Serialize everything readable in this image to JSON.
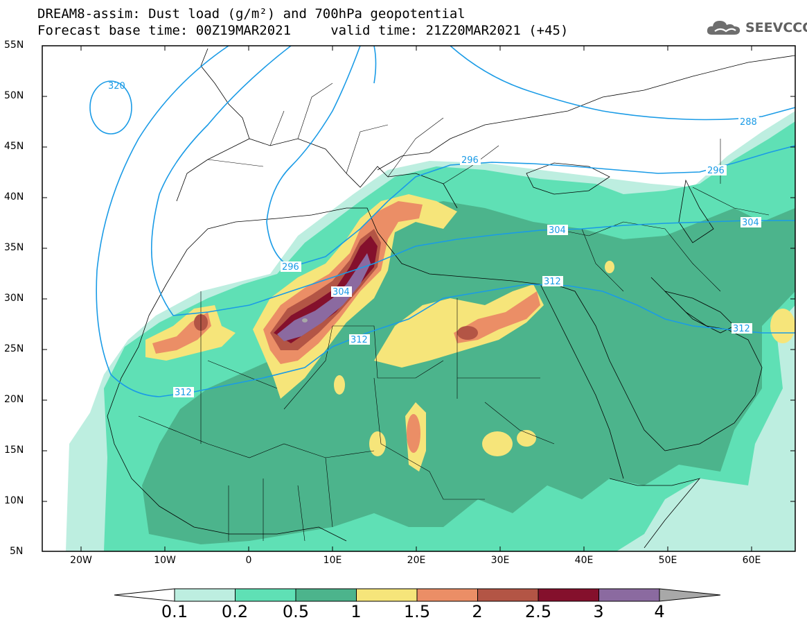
{
  "header": {
    "title_line1": "DREAM8-assim: Dust load (g/m²) and 700hPa geopotential",
    "title_line2": "Forecast base time: 00Z19MAR2021     valid time: 21Z20MAR2021 (+45)"
  },
  "logo": {
    "text": "SEEVCCC",
    "icon": "cloud-icon"
  },
  "map": {
    "lon_range": [
      -25,
      65
    ],
    "lat_range": [
      5,
      55
    ],
    "lat_labels": [
      "55N",
      "50N",
      "45N",
      "40N",
      "35N",
      "30N",
      "25N",
      "20N",
      "15N",
      "10N",
      "5N"
    ],
    "lon_labels": [
      "20W",
      "10W",
      "0",
      "10E",
      "20E",
      "30E",
      "40E",
      "50E",
      "60E"
    ],
    "contour_labels": [
      "320",
      "288",
      "296",
      "296",
      "296",
      "304",
      "304",
      "304",
      "312",
      "312",
      "312",
      "312"
    ],
    "dust_colors": {
      "c1": "#bdeee0",
      "c2": "#5fe0b5",
      "c3": "#4cb48c",
      "c4": "#f6e57a",
      "c5": "#eb8e66",
      "c6": "#b35545",
      "c7": "#84102c",
      "c8": "#8b6aa0",
      "c9": "#a8a8a8"
    },
    "contour_color": "#1a9be6"
  },
  "colorbar": {
    "labels": [
      "0.1",
      "0.2",
      "0.5",
      "1",
      "1.5",
      "2",
      "2.5",
      "3",
      "4"
    ],
    "colors": [
      "#bdeee0",
      "#5fe0b5",
      "#4cb48c",
      "#f6e57a",
      "#eb8e66",
      "#b35545",
      "#84102c",
      "#8b6aa0"
    ],
    "low_end_color": "#ffffff",
    "high_end_color": "#a8a8a8"
  }
}
